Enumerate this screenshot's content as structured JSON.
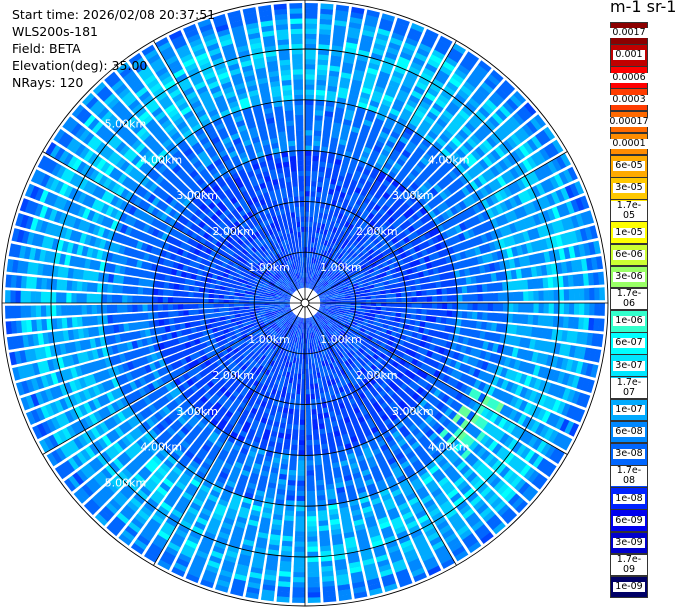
{
  "info": {
    "start_time": "Start time: 2026/02/08 20:37:51",
    "instrument": "WLS200s-181",
    "field": "Field: BETA",
    "elevation": "Elevation(deg): 35.00",
    "nrays": "NRays: 120"
  },
  "colorbar": {
    "title": "m-1 sr-1",
    "levels": [
      "0.0017",
      "0.001",
      "0.0006",
      "0.0003",
      "0.00017",
      "0.0001",
      "6e-05",
      "3e-05",
      "1.7e-05",
      "1e-05",
      "6e-06",
      "3e-06",
      "1.7e-06",
      "1e-06",
      "6e-07",
      "3e-07",
      "1.7e-07",
      "1e-07",
      "6e-08",
      "3e-08",
      "1.7e-08",
      "1e-08",
      "6e-09",
      "3e-09",
      "1.7e-09",
      "1e-09"
    ],
    "colors": [
      "#8b0000",
      "#c00000",
      "#ff0000",
      "#ff3c00",
      "#ff6a00",
      "#ff8c00",
      "#ffaa00",
      "#ffc800",
      "#ffe600",
      "#ffff00",
      "#ccff33",
      "#99ff66",
      "#66ff99",
      "#33ffcc",
      "#00ffff",
      "#00e6ff",
      "#00ccff",
      "#00aaff",
      "#0088ff",
      "#0066ff",
      "#0044ff",
      "#0022ff",
      "#0000ee",
      "#0000cc",
      "#000099",
      "#000066"
    ]
  },
  "chart_data": {
    "type": "ppi",
    "field": "BETA",
    "nrays": 120,
    "range_rings_km": [
      1,
      2,
      3,
      4,
      5
    ],
    "ring_labels": [
      "1.00km",
      "2.00km",
      "3.00km",
      "4.00km",
      "5.00km"
    ],
    "max_range_km": 6,
    "dominant_value": "3e-08",
    "enhanced_band_range_km": [
      4.0,
      5.5
    ],
    "enhanced_band_value": "1e-07"
  }
}
